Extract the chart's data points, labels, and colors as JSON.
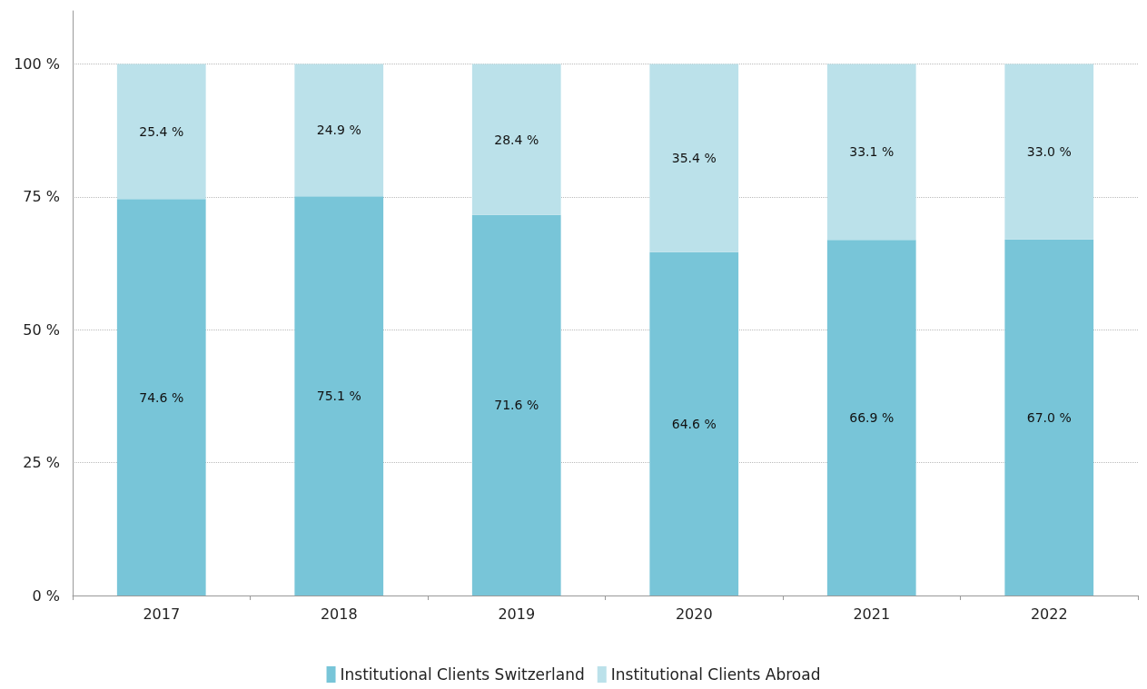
{
  "chart_data": {
    "type": "bar",
    "stacked": true,
    "categories": [
      "2017",
      "2018",
      "2019",
      "2020",
      "2021",
      "2022"
    ],
    "series": [
      {
        "name": "Institutional Clients Switzerland",
        "color": "#78c5d8",
        "values": [
          74.6,
          75.1,
          71.6,
          64.6,
          66.9,
          67.0
        ],
        "value_labels": [
          "74.6 %",
          "75.1 %",
          "71.6 %",
          "64.6 %",
          "66.9 %",
          "67.0 %"
        ]
      },
      {
        "name": "Institutional Clients Abroad",
        "color": "#bbe1ea",
        "values": [
          25.4,
          24.9,
          28.4,
          35.4,
          33.1,
          33.0
        ],
        "value_labels": [
          "25.4 %",
          "24.9 %",
          "28.4 %",
          "35.4 %",
          "33.1 %",
          "33.0 %"
        ]
      }
    ],
    "ylim": [
      0,
      110
    ],
    "yticks": [
      {
        "value": 0,
        "label": "0 %"
      },
      {
        "value": 25,
        "label": "25 %"
      },
      {
        "value": 50,
        "label": "50 %"
      },
      {
        "value": 75,
        "label": "75 %"
      },
      {
        "value": 100,
        "label": "100 %"
      }
    ],
    "grid": "y",
    "legend": "bottom"
  }
}
